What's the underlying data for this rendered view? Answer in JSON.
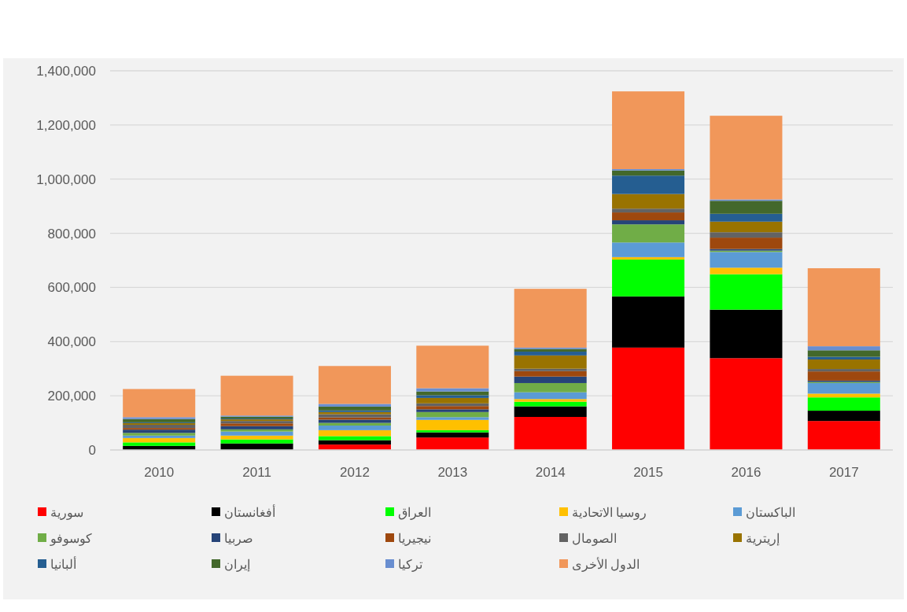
{
  "chart_data": {
    "type": "bar",
    "stacked": true,
    "categories": [
      "2010",
      "2011",
      "2012",
      "2013",
      "2014",
      "2015",
      "2016",
      "2017"
    ],
    "series": [
      {
        "name": "سورية",
        "color": "#ff0000",
        "values": [
          null,
          null,
          20000,
          46000,
          122000,
          378000,
          339000,
          107000
        ]
      },
      {
        "name": "أفغانستان",
        "color": "#000000",
        "values": [
          15000,
          24000,
          16000,
          19000,
          39000,
          189000,
          179000,
          38000
        ]
      },
      {
        "name": "العراق",
        "color": "#00ff00",
        "values": [
          13000,
          15000,
          15000,
          8000,
          17000,
          136000,
          131000,
          49000
        ]
      },
      {
        "name": "روسيا الاتحادية",
        "color": "#ffc000",
        "values": [
          16000,
          14000,
          22000,
          38000,
          10000,
          9000,
          24000,
          14000
        ]
      },
      {
        "name": "الباكستان",
        "color": "#5b9bd5",
        "values": [
          9000,
          15000,
          17000,
          10000,
          25000,
          54000,
          58000,
          39000
        ]
      },
      {
        "name": "كوسوفو",
        "color": "#70ad47",
        "values": [
          10000,
          8000,
          10000,
          19000,
          34000,
          67000,
          5000,
          4000
        ]
      },
      {
        "name": "صربيا",
        "color": "#264478",
        "values": [
          12000,
          12000,
          12000,
          10000,
          24000,
          15000,
          6000,
          5000
        ]
      },
      {
        "name": "نيجيريا",
        "color": "#9e480e",
        "values": [
          6000,
          10000,
          8000,
          12000,
          20000,
          29000,
          42000,
          34000
        ]
      },
      {
        "name": "الصومال",
        "color": "#636363",
        "values": [
          12000,
          9000,
          12000,
          10000,
          9000,
          14000,
          20000,
          9000
        ]
      },
      {
        "name": "إريترية",
        "color": "#997300",
        "values": [
          6000,
          6000,
          8000,
          20000,
          49000,
          54000,
          39000,
          35000
        ]
      },
      {
        "name": "ألبانيا",
        "color": "#255e91",
        "values": [
          3000,
          3000,
          6000,
          10000,
          14000,
          68000,
          29000,
          10000
        ]
      },
      {
        "name": "إيران",
        "color": "#43682b",
        "values": [
          12000,
          7000,
          14000,
          14000,
          10000,
          19000,
          48000,
          24000
        ]
      },
      {
        "name": "تركيا",
        "color": "#698ed0",
        "values": [
          7000,
          4000,
          10000,
          12000,
          5000,
          5000,
          5000,
          15000
        ]
      },
      {
        "name": "الدول الأخرى",
        "color": "#f1975a",
        "values": [
          104000,
          147000,
          140000,
          157000,
          217000,
          287000,
          309000,
          288000
        ]
      }
    ],
    "ylim": [
      0,
      1400000
    ],
    "yticks": [
      {
        "value": 0,
        "label": "0"
      },
      {
        "value": 200000,
        "label": "200,000"
      },
      {
        "value": 400000,
        "label": "400,000"
      },
      {
        "value": 600000,
        "label": "600,000"
      },
      {
        "value": 800000,
        "label": "800,000"
      },
      {
        "value": 1000000,
        "label": "1,000,000"
      },
      {
        "value": 1200000,
        "label": "1,200,000"
      },
      {
        "value": 1400000,
        "label": "1,400,000"
      }
    ],
    "grid": "y",
    "legend": "bottom"
  }
}
